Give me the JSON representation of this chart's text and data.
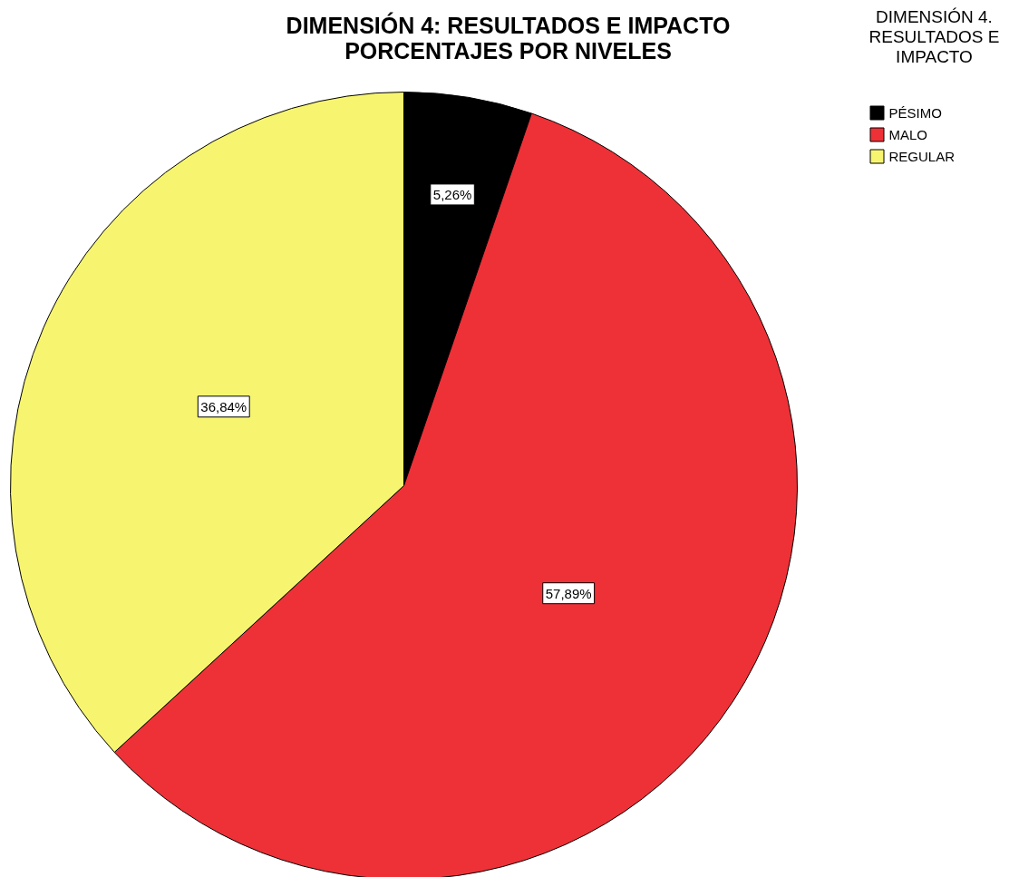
{
  "chart_data": {
    "type": "pie",
    "title": "DIMENSIÓN 4: RESULTADOS E IMPACTO\nPORCENTAJES POR NIVELES",
    "legend_title": "DIMENSIÓN 4. RESULTADOS E IMPACTO",
    "categories": [
      "PÉSIMO",
      "MALO",
      "REGULAR"
    ],
    "values": [
      5.26,
      57.89,
      36.84
    ],
    "colors": [
      "#000000",
      "#ee3137",
      "#f7f570"
    ],
    "value_labels": [
      "5,26%",
      "57,89%",
      "36,84%"
    ],
    "legend": "top right"
  }
}
